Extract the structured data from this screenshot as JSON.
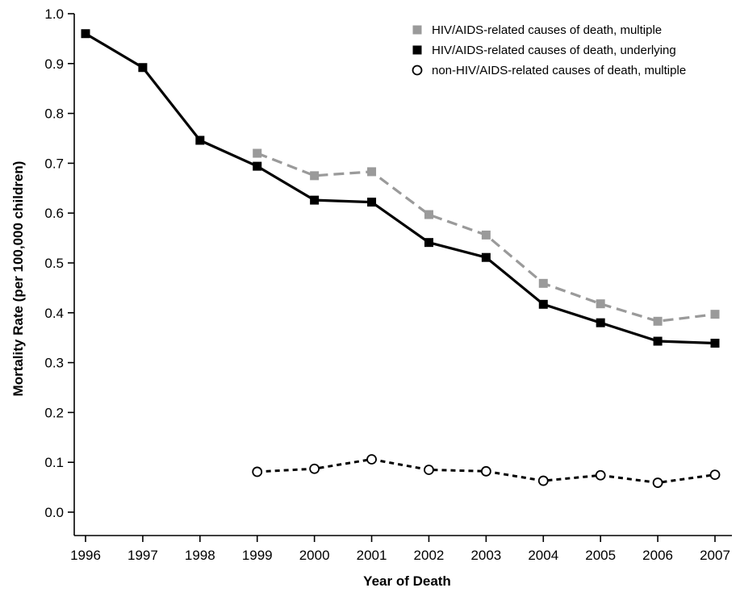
{
  "chart_data": {
    "type": "line",
    "x": [
      1996,
      1997,
      1998,
      1999,
      2000,
      2001,
      2002,
      2003,
      2004,
      2005,
      2006,
      2007
    ],
    "x_tick_labels": [
      "1996",
      "1997",
      "1998",
      "1999",
      "2000",
      "2001",
      "2002",
      "2003",
      "2004",
      "2005",
      "2006",
      "2007"
    ],
    "y_tick_labels": [
      "0.0",
      "0.1",
      "0.2",
      "0.3",
      "0.4",
      "0.5",
      "0.6",
      "0.7",
      "0.8",
      "0.9",
      "1.0"
    ],
    "xlabel": "Year of Death",
    "ylabel": "Mortality Rate (per 100,000 children)",
    "ylim": [
      0.0,
      1.0
    ],
    "xlim": [
      1996,
      2007
    ],
    "grid": false,
    "legend_position": "top-right",
    "series": [
      {
        "name": "HIV/AIDS-related causes of death, multiple",
        "color": "#9a9a9a",
        "line_style": "dashed",
        "marker": "filled-square",
        "x": [
          1999,
          2000,
          2001,
          2002,
          2003,
          2004,
          2005,
          2006,
          2007
        ],
        "values": [
          0.72,
          0.675,
          0.683,
          0.597,
          0.556,
          0.459,
          0.418,
          0.383,
          0.397
        ]
      },
      {
        "name": "HIV/AIDS-related causes of death, underlying",
        "color": "#000000",
        "line_style": "solid",
        "marker": "filled-square",
        "x": [
          1996,
          1997,
          1998,
          1999,
          2000,
          2001,
          2002,
          2003,
          2004,
          2005,
          2006,
          2007
        ],
        "values": [
          0.96,
          0.892,
          0.746,
          0.694,
          0.626,
          0.622,
          0.541,
          0.511,
          0.417,
          0.38,
          0.343,
          0.339
        ]
      },
      {
        "name": "non-HIV/AIDS-related causes of death, multiple",
        "color": "#000000",
        "line_style": "dotted",
        "marker": "open-circle",
        "x": [
          1999,
          2000,
          2001,
          2002,
          2003,
          2004,
          2005,
          2006,
          2007
        ],
        "values": [
          0.081,
          0.087,
          0.106,
          0.085,
          0.082,
          0.063,
          0.074,
          0.059,
          0.075
        ]
      }
    ]
  }
}
